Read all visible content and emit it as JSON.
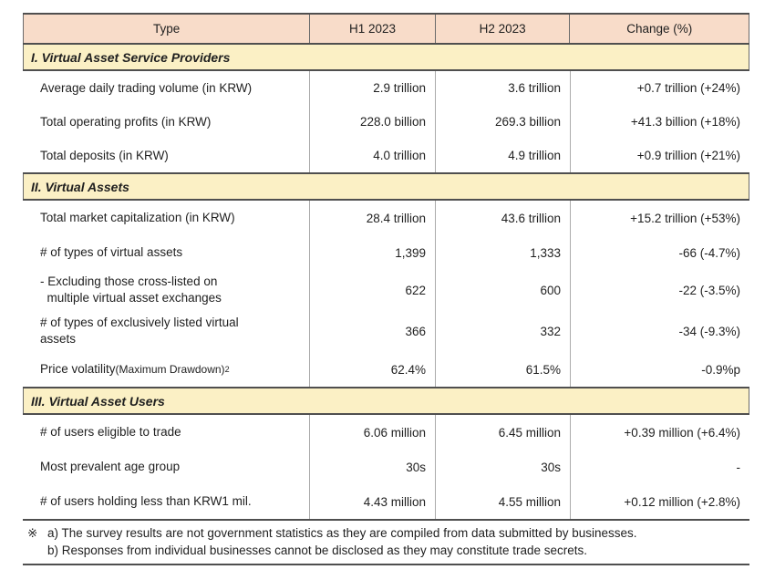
{
  "table": {
    "columns": [
      "Type",
      "H1 2023",
      "H2 2023",
      "Change (%)"
    ],
    "sections": [
      {
        "title": "I. Virtual Asset Service Providers",
        "rows": [
          {
            "label": "Average daily trading volume (in KRW)",
            "h1": "2.9 trillion",
            "h2": "3.6 trillion",
            "change": "+0.7 trillion (+24%)"
          },
          {
            "label": "Total operating profits (in KRW)",
            "h1": "228.0 billion",
            "h2": "269.3 billion",
            "change": "+41.3 billion (+18%)"
          },
          {
            "label": "Total deposits (in KRW)",
            "h1": "4.0 trillion",
            "h2": "4.9 trillion",
            "change": "+0.9 trillion (+21%)"
          }
        ]
      },
      {
        "title": "II. Virtual Assets",
        "rows": [
          {
            "label": "Total market capitalization (in KRW)",
            "h1": "28.4 trillion",
            "h2": "43.6 trillion",
            "change": "+15.2 trillion (+53%)"
          },
          {
            "label": "# of types of virtual assets",
            "h1": "1,399",
            "h2": "1,333",
            "change": "-66 (-4.7%)"
          },
          {
            "label": "- Excluding those cross-listed on\n  multiple virtual asset exchanges",
            "h1": "622",
            "h2": "600",
            "change": "-22 (-3.5%)"
          },
          {
            "label": "# of types of exclusively listed virtual\nassets",
            "h1": "366",
            "h2": "332",
            "change": "-34 (-9.3%)"
          },
          {
            "label": "Price volatility ",
            "label_paren": "(Maximum Drawdown)",
            "label_sup": "2",
            "h1": "62.4%",
            "h2": "61.5%",
            "change": "-0.9%p"
          }
        ]
      },
      {
        "title": "III. Virtual Asset Users",
        "rows": [
          {
            "label": "# of users eligible to trade",
            "h1": "6.06 million",
            "h2": "6.45 million",
            "change": "+0.39 million (+6.4%)"
          },
          {
            "label": "Most prevalent age group",
            "h1": "30s",
            "h2": "30s",
            "change": "-"
          },
          {
            "label": "# of users holding less than KRW1 mil.",
            "h1": "4.43 million",
            "h2": "4.55 million",
            "change": "+0.12 million (+2.8%)"
          }
        ]
      }
    ],
    "footnote": {
      "marker": "※",
      "line_a": "a) The survey results are not government statistics as they are compiled from data submitted by businesses.",
      "line_b": "b) Responses from individual businesses cannot be disclosed as they may constitute trade secrets."
    },
    "colors": {
      "header_bg": "#f8dcc9",
      "section_bg": "#fbf0c5",
      "border_dark": "#4f4f4f",
      "divider_light": "#ababab"
    }
  }
}
